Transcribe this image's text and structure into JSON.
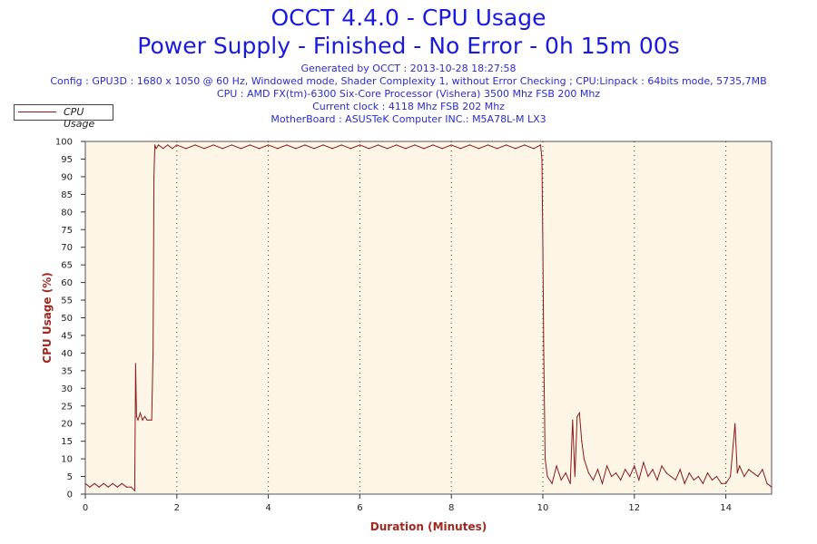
{
  "header": {
    "title": "OCCT 4.4.0 - CPU Usage",
    "subtitle": "Power Supply - Finished - No Error - 0h 15m 00s",
    "info_lines": [
      "Generated by OCCT : 2013-10-28 18:27:58",
      "Config : GPU3D : 1680 x 1050 @ 60 Hz, Windowed mode, Shader Complexity 1, without Error Checking ; CPU:Linpack : 64bits mode, 5735,7MB",
      "CPU : AMD FX(tm)-6300 Six-Core Processor (Vishera) 3500 Mhz FSB 200 Mhz",
      "Current clock : 4118 Mhz FSB 202 Mhz",
      "MotherBoard : ASUSTeK Computer INC.: M5A78L-M LX3"
    ]
  },
  "chart_data": {
    "type": "line",
    "xlabel": "Duration (Minutes)",
    "ylabel": "CPU Usage (%)",
    "xlim": [
      0,
      15
    ],
    "ylim": [
      0,
      100
    ],
    "x_ticks": [
      0,
      2,
      4,
      6,
      8,
      10,
      12,
      14
    ],
    "y_ticks": [
      0,
      5,
      10,
      15,
      20,
      25,
      30,
      35,
      40,
      45,
      50,
      55,
      60,
      65,
      70,
      75,
      80,
      85,
      90,
      95,
      100
    ],
    "grid": "vertical dotted",
    "legend_position": "top-left",
    "colors": {
      "line": "#8b1a1a",
      "plot_background": "#fdf5e6",
      "axis_label": "#a0281e",
      "title": "#1a1adf"
    },
    "series": [
      {
        "name": "CPU Usage",
        "x": [
          0,
          0.1,
          0.2,
          0.3,
          0.4,
          0.5,
          0.6,
          0.7,
          0.8,
          0.9,
          1.0,
          1.08,
          1.1,
          1.12,
          1.15,
          1.2,
          1.25,
          1.3,
          1.35,
          1.4,
          1.45,
          1.48,
          1.5,
          1.52,
          1.55,
          1.6,
          1.7,
          1.8,
          1.9,
          2.0,
          2.2,
          2.4,
          2.6,
          2.8,
          3.0,
          3.2,
          3.4,
          3.6,
          3.8,
          4.0,
          4.2,
          4.4,
          4.6,
          4.8,
          5.0,
          5.2,
          5.4,
          5.6,
          5.8,
          6.0,
          6.2,
          6.4,
          6.6,
          6.8,
          7.0,
          7.2,
          7.4,
          7.6,
          7.8,
          8.0,
          8.2,
          8.4,
          8.6,
          8.8,
          9.0,
          9.2,
          9.4,
          9.6,
          9.8,
          9.95,
          9.98,
          10.0,
          10.02,
          10.05,
          10.1,
          10.2,
          10.3,
          10.4,
          10.5,
          10.6,
          10.65,
          10.7,
          10.75,
          10.8,
          10.85,
          10.9,
          11.0,
          11.1,
          11.2,
          11.3,
          11.4,
          11.5,
          11.6,
          11.7,
          11.8,
          11.9,
          12.0,
          12.1,
          12.2,
          12.3,
          12.4,
          12.5,
          12.6,
          12.7,
          12.8,
          12.9,
          13.0,
          13.1,
          13.2,
          13.3,
          13.4,
          13.5,
          13.6,
          13.7,
          13.8,
          13.9,
          14.0,
          14.1,
          14.2,
          14.25,
          14.3,
          14.4,
          14.5,
          14.6,
          14.7,
          14.8,
          14.9,
          15.0
        ],
        "values": [
          3,
          2,
          3,
          2,
          3,
          2,
          3,
          2,
          3,
          2,
          2,
          1,
          37,
          22,
          21,
          23,
          21,
          22,
          21,
          21,
          21,
          40,
          90,
          99,
          98,
          99,
          98,
          99,
          98,
          99,
          98,
          99,
          98,
          99,
          98,
          99,
          98,
          99,
          98,
          99,
          98,
          99,
          98,
          99,
          98,
          99,
          98,
          99,
          98,
          99,
          98,
          99,
          98,
          99,
          98,
          99,
          98,
          99,
          98,
          99,
          98,
          99,
          98,
          99,
          98,
          99,
          98,
          99,
          98,
          99,
          95,
          70,
          40,
          10,
          5,
          3,
          8,
          4,
          6,
          3,
          21,
          5,
          22,
          23,
          15,
          10,
          6,
          4,
          7,
          3,
          8,
          5,
          6,
          4,
          7,
          5,
          8,
          4,
          9,
          5,
          7,
          4,
          8,
          6,
          5,
          4,
          7,
          3,
          6,
          4,
          5,
          3,
          6,
          4,
          5,
          3,
          3,
          5,
          20,
          6,
          8,
          5,
          7,
          6,
          5,
          7,
          3,
          2
        ]
      }
    ]
  }
}
